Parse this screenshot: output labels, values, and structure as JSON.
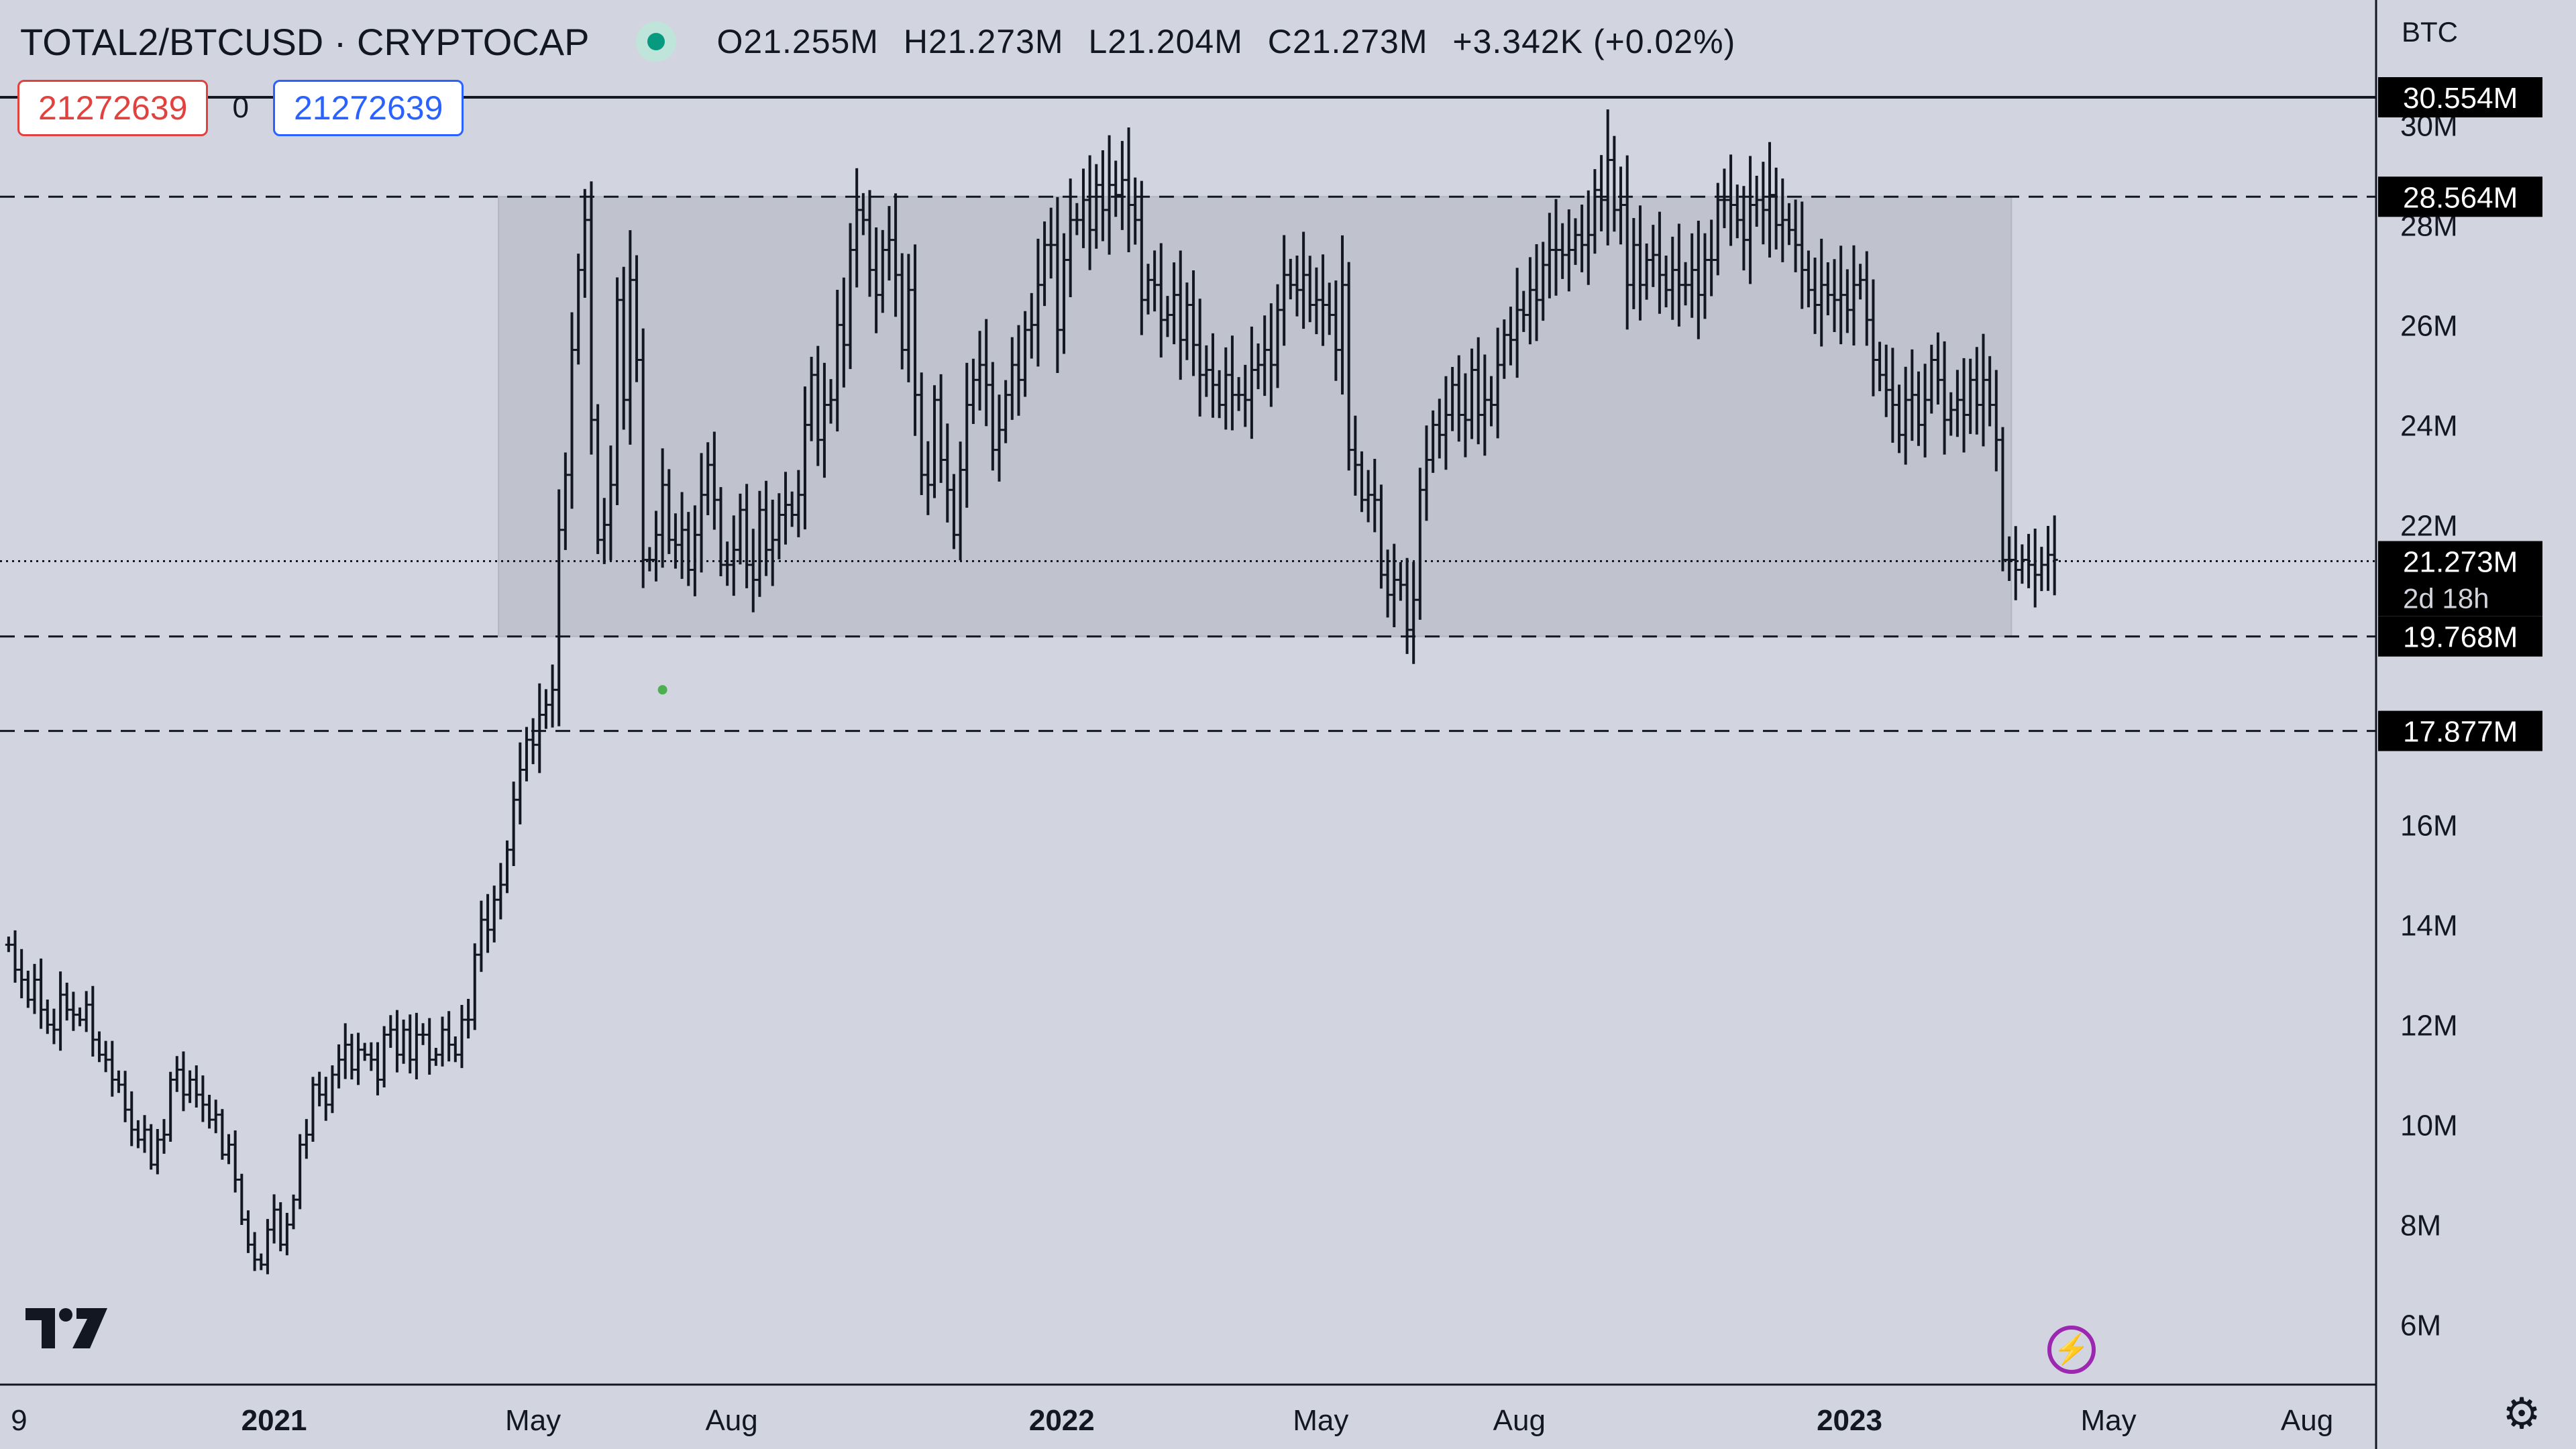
{
  "header": {
    "symbol": "TOTAL2/BTCUSD · CRYPTOCAP",
    "open": "O21.255M",
    "high": "H21.273M",
    "low": "L21.204M",
    "close": "C21.273M",
    "change": "+3.342K (+0.02%)"
  },
  "trade": {
    "sell_price": "21272639",
    "quantity": "0",
    "buy_price": "21272639"
  },
  "colors": {
    "background": "#d2d5e0",
    "bars": "#131722",
    "range_box": "#c0c3ce",
    "label_bg": "#000000",
    "sell": "#e0433f",
    "buy": "#2962ff",
    "live": "#089981",
    "signal_dot": "#4caf50",
    "bolt": "#9c27b0"
  },
  "icons": {
    "logo": "tradingview-logo",
    "settings": "gear-icon",
    "bolt": "lightning-icon",
    "live": "live-dot-icon"
  },
  "chart_data": {
    "type": "ohlc",
    "title": "TOTAL2/BTCUSD · CRYPTOCAP",
    "currency_label": "BTC",
    "y_scale": "linear",
    "ylim": [
      4.8,
      32.5
    ],
    "y_ticks": [
      {
        "value": 6,
        "label": "6M"
      },
      {
        "value": 8,
        "label": "8M"
      },
      {
        "value": 10,
        "label": "10M"
      },
      {
        "value": 12,
        "label": "12M"
      },
      {
        "value": 14,
        "label": "14M"
      },
      {
        "value": 16,
        "label": "16M"
      },
      {
        "value": 22,
        "label": "22M"
      },
      {
        "value": 24,
        "label": "24M"
      },
      {
        "value": 26,
        "label": "26M"
      },
      {
        "value": 28,
        "label": "28M"
      },
      {
        "value": 30,
        "label": "30M"
      }
    ],
    "x_ticks": [
      {
        "date": "2020-09-01",
        "label": "9",
        "bold": false
      },
      {
        "date": "2021-01-01",
        "label": "2021",
        "bold": true
      },
      {
        "date": "2021-05-01",
        "label": "May",
        "bold": false
      },
      {
        "date": "2021-08-01",
        "label": "Aug",
        "bold": false
      },
      {
        "date": "2022-01-01",
        "label": "2022",
        "bold": true
      },
      {
        "date": "2022-05-01",
        "label": "May",
        "bold": false
      },
      {
        "date": "2022-08-01",
        "label": "Aug",
        "bold": false
      },
      {
        "date": "2023-01-01",
        "label": "2023",
        "bold": true
      },
      {
        "date": "2023-05-01",
        "label": "May",
        "bold": false
      },
      {
        "date": "2023-08-01",
        "label": "Aug",
        "bold": false
      }
    ],
    "x_range": [
      "2020-08-27",
      "2023-09-02"
    ],
    "price_levels": [
      {
        "value": 30.554,
        "label": "30.554M",
        "style": "solid"
      },
      {
        "value": 28.564,
        "label": "28.564M",
        "style": "dashed"
      },
      {
        "value": 19.768,
        "label": "19.768M",
        "style": "dashed"
      },
      {
        "value": 17.877,
        "label": "17.877M",
        "style": "dashed"
      }
    ],
    "current_price": {
      "value": 21.273,
      "label": "21.273M",
      "countdown": "2d 18h",
      "style": "dotted"
    },
    "range_box": {
      "start": "2021-04-15",
      "end": "2023-03-17",
      "top": 28.564,
      "bottom": 19.768
    },
    "signal_dot": {
      "date": "2021-06-30",
      "value": 18.7
    },
    "bar_interval_days": 3,
    "bars_start": "2020-08-31",
    "closes": [
      13.6,
      13.1,
      12.9,
      12.5,
      12.9,
      12.3,
      12.0,
      11.9,
      12.6,
      12.3,
      12.2,
      12.1,
      12.4,
      11.7,
      11.4,
      11.3,
      10.9,
      10.8,
      10.3,
      9.9,
      9.7,
      9.9,
      9.2,
      9.7,
      9.8,
      10.9,
      11.1,
      10.6,
      10.9,
      10.6,
      10.4,
      10.1,
      10.2,
      9.4,
      9.6,
      8.9,
      8.1,
      7.6,
      7.3,
      7.2,
      7.9,
      8.3,
      7.6,
      8.0,
      8.5,
      9.6,
      9.8,
      10.8,
      10.6,
      10.4,
      11.0,
      11.3,
      11.6,
      11.1,
      11.5,
      11.4,
      11.3,
      10.9,
      11.8,
      11.9,
      11.4,
      11.9,
      11.3,
      11.8,
      11.8,
      11.3,
      11.4,
      11.9,
      11.6,
      11.4,
      12.1,
      12.1,
      13.4,
      14.1,
      13.9,
      14.5,
      14.8,
      15.5,
      16.5,
      17.1,
      17.7,
      17.6,
      18.2,
      18.4,
      18.7,
      21.9,
      23.0,
      25.5,
      27.1,
      28.1,
      24.1,
      21.7,
      22.0,
      22.8,
      26.5,
      24.5,
      26.9,
      25.3,
      21.3,
      21.3,
      21.8,
      22.8,
      21.7,
      21.6,
      21.9,
      21.1,
      21.8,
      22.6,
      23.2,
      22.5,
      21.2,
      21.2,
      21.5,
      22.3,
      21.2,
      20.9,
      22.3,
      21.5,
      21.7,
      22.2,
      22.4,
      22.2,
      22.6,
      24.0,
      25.0,
      23.7,
      24.4,
      24.5,
      26.0,
      25.6,
      27.5,
      28.3,
      28.1,
      27.1,
      26.6,
      27.5,
      27.7,
      27.0,
      25.5,
      26.7,
      24.6,
      23.0,
      22.8,
      24.5,
      23.3,
      22.7,
      21.8,
      23.1,
      24.4,
      24.9,
      25.2,
      24.8,
      23.5,
      23.9,
      24.6,
      25.2,
      24.9,
      25.9,
      26.0,
      26.8,
      27.6,
      27.6,
      25.9,
      27.3,
      28.1,
      28.1,
      28.5,
      27.9,
      28.8,
      28.3,
      28.8,
      28.6,
      28.9,
      28.4,
      28.1,
      26.5,
      26.9,
      26.8,
      26.1,
      26.2,
      26.6,
      25.7,
      26.4,
      25.6,
      25.0,
      25.1,
      24.8,
      24.4,
      25.0,
      24.6,
      24.6,
      24.5,
      25.1,
      25.2,
      25.5,
      25.2,
      26.3,
      27.0,
      26.8,
      26.7,
      27.0,
      26.4,
      26.5,
      26.4,
      26.2,
      25.5,
      26.8,
      23.5,
      23.2,
      22.5,
      22.6,
      22.5,
      21.0,
      20.6,
      20.9,
      20.8,
      19.9,
      20.5,
      22.7,
      23.3,
      24.0,
      23.8,
      24.2,
      24.8,
      24.2,
      24.1,
      25.1,
      24.2,
      24.5,
      24.4,
      25.2,
      25.8,
      25.7,
      26.3,
      26.2,
      26.7,
      26.5,
      27.2,
      27.5,
      27.5,
      27.4,
      27.5,
      27.8,
      27.6,
      27.8,
      28.7,
      28.5,
      29.3,
      28.3,
      28.4,
      26.8,
      27.6,
      26.8,
      27.3,
      27.4,
      27.0,
      26.7,
      27.1,
      26.8,
      26.8,
      27.1,
      26.6,
      27.3,
      27.3,
      28.5,
      28.5,
      28.4,
      28.1,
      27.7,
      28.4,
      28.5,
      28.3,
      28.6,
      28.0,
      28.1,
      27.9,
      27.6,
      27.1,
      26.7,
      26.4,
      26.8,
      26.6,
      26.5,
      26.6,
      26.3,
      26.8,
      26.9,
      26.1,
      25.3,
      25.0,
      24.7,
      24.4,
      23.8,
      24.5,
      24.6,
      24.0,
      24.5,
      25.3,
      24.9,
      24.1,
      24.3,
      24.5,
      24.2,
      24.9,
      24.4,
      24.9,
      24.4,
      23.7,
      21.3,
      21.3,
      21.1,
      21.3,
      21.2,
      21.0,
      21.2,
      21.4,
      21.3
    ],
    "annotations": [
      "30.554M",
      "28.564M",
      "21.273M",
      "2d 18h",
      "19.768M",
      "17.877M"
    ]
  }
}
